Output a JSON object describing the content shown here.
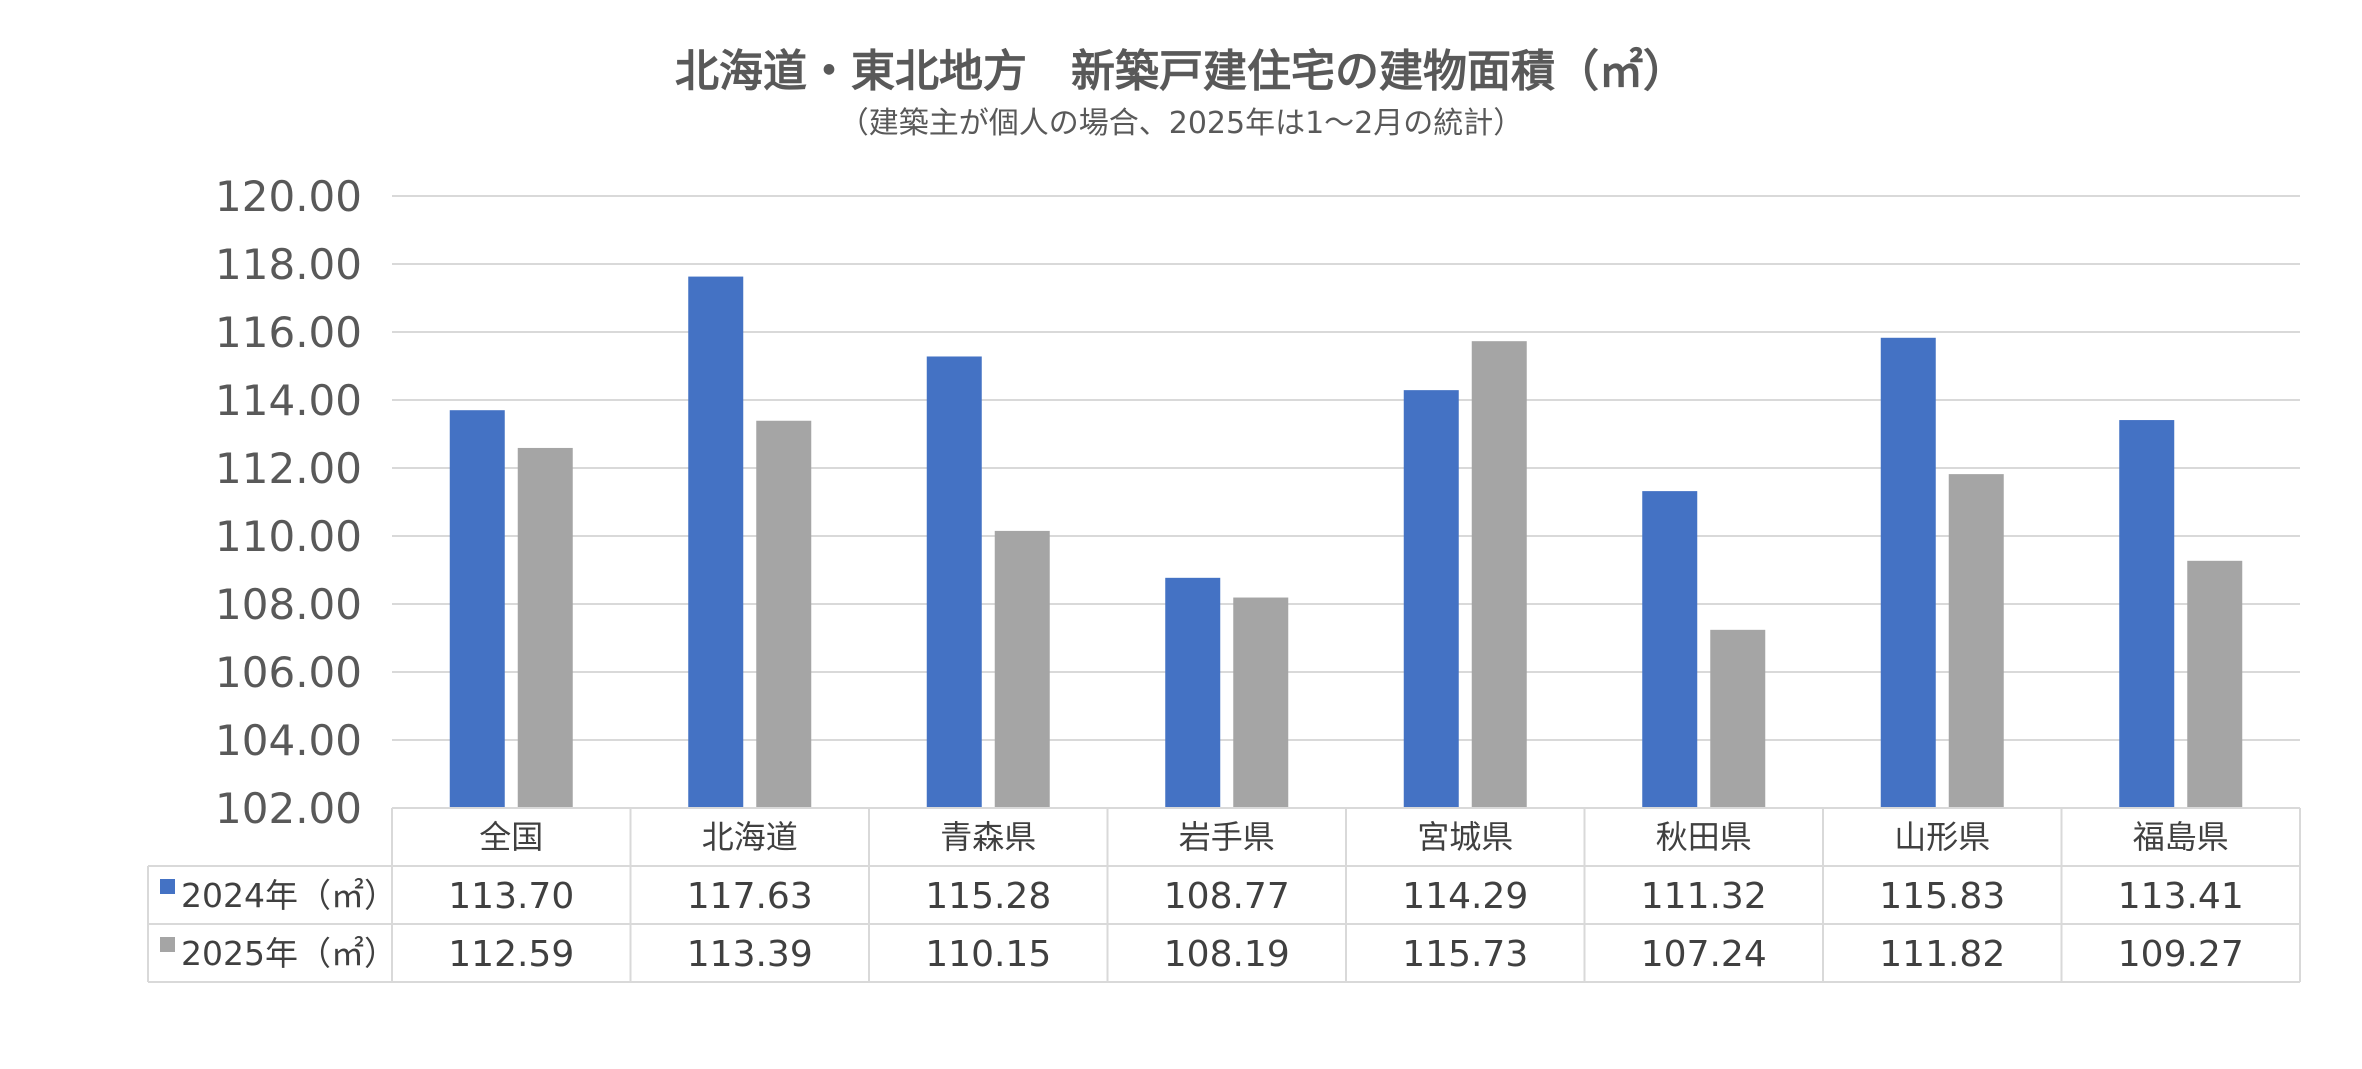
{
  "chart_data": {
    "type": "bar",
    "title": "北海道・東北地方　新築戸建住宅の建物面積（㎡）",
    "subtitle": "（建築主が個人の場合、2025年は1～2月の統計）",
    "categories": [
      "全国",
      "北海道",
      "青森県",
      "岩手県",
      "宮城県",
      "秋田県",
      "山形県",
      "福島県"
    ],
    "series": [
      {
        "name": "2024年（㎡）",
        "color": "#4472C4",
        "values": [
          113.7,
          117.63,
          115.28,
          108.77,
          114.29,
          111.32,
          115.83,
          113.41
        ],
        "labels": [
          "113.70",
          "117.63",
          "115.28",
          "108.77",
          "114.29",
          "111.32",
          "115.83",
          "113.41"
        ]
      },
      {
        "name": "2025年（㎡）",
        "color": "#A5A5A5",
        "values": [
          112.59,
          113.39,
          110.15,
          108.19,
          115.73,
          107.24,
          111.82,
          109.27
        ],
        "labels": [
          "112.59",
          "113.39",
          "110.15",
          "108.19",
          "115.73",
          "107.24",
          "111.82",
          "109.27"
        ]
      }
    ],
    "ylim": [
      102,
      120
    ],
    "yticks": [
      "102.00",
      "104.00",
      "106.00",
      "108.00",
      "110.00",
      "112.00",
      "114.00",
      "116.00",
      "118.00",
      "120.00"
    ],
    "ytick_values": [
      102,
      104,
      106,
      108,
      110,
      112,
      114,
      116,
      118,
      120
    ],
    "grid": true,
    "legend": "data-table"
  }
}
